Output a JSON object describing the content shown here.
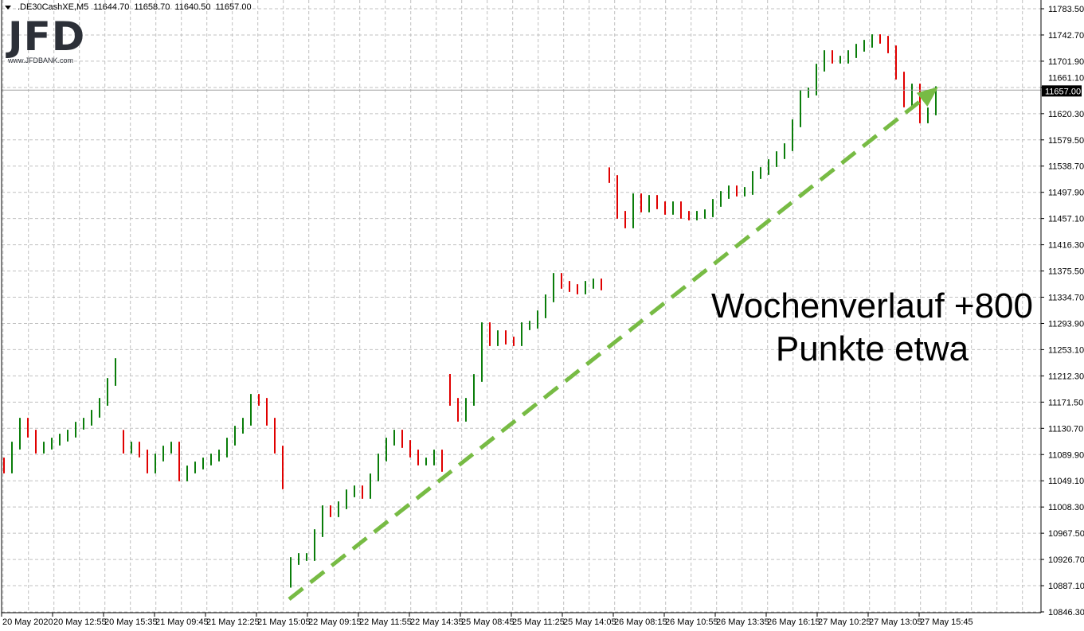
{
  "header": {
    "symbol": ".DE30CashXE,M5",
    "open": "11644.70",
    "high": "11658.70",
    "low": "11640.50",
    "close": "11657.00"
  },
  "logo": {
    "text": "JFD",
    "url": "www.JFDBANK.com"
  },
  "annotation": {
    "line1": "Wochenverlauf +800",
    "line2": "Punkte etwa"
  },
  "colors": {
    "up": "#0a7d0a",
    "down": "#e00000",
    "arrow": "#77bb44",
    "grid": "#c0c0c0",
    "price_label_bg": "#000000"
  },
  "chart_data": {
    "type": "bar",
    "title": "",
    "symbol": ".DE30CashXE,M5",
    "ylim": [
      10846.3,
      11783.5
    ],
    "grid": true,
    "current_price": 11657.0,
    "current_price_label": "11657.00",
    "y_ticks": [
      "11783.50",
      "11742.70",
      "11701.90",
      "11661.10",
      "11620.30",
      "11579.50",
      "11538.70",
      "11497.90",
      "11457.10",
      "11416.30",
      "11375.50",
      "11334.70",
      "11293.90",
      "11253.10",
      "11212.30",
      "11171.50",
      "11130.70",
      "11089.90",
      "11049.10",
      "11008.30",
      "10967.50",
      "10926.70",
      "10887.10",
      "10846.30"
    ],
    "x_ticks": [
      "20 May 2020",
      "20 May 12:55",
      "20 May 15:35",
      "21 May 09:45",
      "21 May 12:25",
      "21 May 15:05",
      "22 May 09:15",
      "22 May 11:55",
      "22 May 14:35",
      "25 May 08:45",
      "25 May 11:25",
      "25 May 14:05",
      "26 May 08:15",
      "26 May 10:55",
      "26 May 13:35",
      "26 May 16:15",
      "27 May 10:25",
      "27 May 13:05",
      "27 May 15:45"
    ],
    "first_open": 11080,
    "session_opens": {
      "15": 11123,
      "36": 10890,
      "56": 11210,
      "76": 11531
    },
    "close": [
      11067.6,
      11104.7,
      11141.8,
      11123.3,
      11098.5,
      11104.7,
      11110.9,
      11117.1,
      11123.3,
      11135.6,
      11141.8,
      11154.2,
      11172.7,
      11203.6,
      11234.5,
      11098.5,
      11104.7,
      11092.4,
      11067.6,
      11086.2,
      11098.5,
      11104.7,
      11055.3,
      11067.6,
      11073.8,
      11080.0,
      11086.2,
      11092.4,
      11110.9,
      11129.4,
      11141.8,
      11178.9,
      11172.7,
      11141.8,
      11098.5,
      11042.9,
      10925.4,
      10931.6,
      10931.6,
      10968.7,
      11005.8,
      10999.6,
      11012.0,
      11030.5,
      11036.7,
      11028.1,
      11055.3,
      11086.2,
      11110.9,
      11123.3,
      11107.2,
      11092.4,
      11080.0,
      11080.0,
      11092.4,
      11070.1,
      11172.7,
      11148.0,
      11172.7,
      11209.8,
      11290.2,
      11265.4,
      11277.8,
      11267.9,
      11265.4,
      11290.2,
      11292.6,
      11308.7,
      11333.5,
      11366.8,
      11354.5,
      11349.5,
      11345.8,
      11354.5,
      11358.2,
      11352.0,
      11518.9,
      11463.3,
      11448.4,
      11490.5,
      11473.2,
      11488.0,
      11478.1,
      11469.5,
      11478.1,
      11463.3,
      11460.8,
      11463.3,
      11465.7,
      11481.8,
      11494.2,
      11502.8,
      11497.9,
      11500.4,
      11525.1,
      11531.3,
      11543.6,
      11556.0,
      11568.4,
      11605.5,
      11651.2,
      11654.9,
      11692.0,
      11713.0,
      11704.4,
      11704.4,
      11713.0,
      11722.9,
      11729.1,
      11737.8,
      11735.3,
      11720.4,
      11679.6,
      11636.4,
      11661.1,
      11611.6,
      11624.0,
      11657.0
    ],
    "trend_arrow": {
      "start_bar": 36,
      "start_price": 10866,
      "end_bar": 117,
      "end_price": 11662,
      "style": "dashed"
    }
  }
}
